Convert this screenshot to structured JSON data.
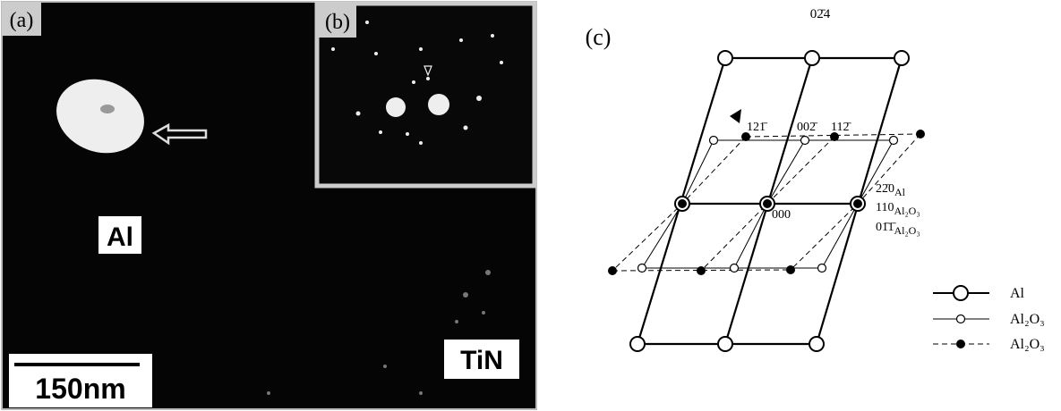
{
  "panel_a": {
    "label": "(a)",
    "particle_label": "Al",
    "matrix_label": "TiN",
    "scale_bar": "150nm"
  },
  "panel_b": {
    "label": "(b)"
  },
  "panel_c": {
    "label": "(c)",
    "spots": {
      "top": "02̄4",
      "upper_left": "121̄",
      "upper_mid": "002̄",
      "upper_right": "112̄",
      "origin": "000"
    },
    "zone_axes": [
      {
        "index": "22̄0",
        "phase": "Al"
      },
      {
        "index": "110",
        "phase": "Al₂O₃"
      },
      {
        "index": "01̄1̄",
        "phase": "Al₂O₃"
      }
    ],
    "legend": [
      "Al",
      "Al₂O₃",
      "Al₂O₃"
    ]
  }
}
